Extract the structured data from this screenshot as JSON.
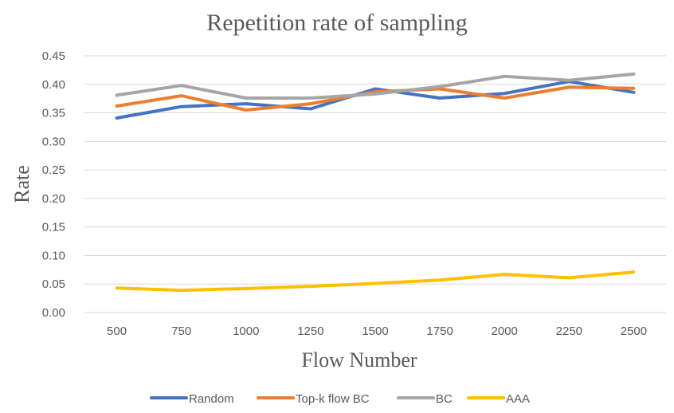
{
  "chart_data": {
    "type": "line",
    "title": "Repetition rate of sampling",
    "xlabel": "Flow Number",
    "ylabel": "Rate",
    "x": [
      500,
      750,
      1000,
      1250,
      1500,
      1750,
      2000,
      2250,
      2500
    ],
    "ylim": [
      0,
      0.45
    ],
    "yticks": [
      "0.00",
      "0.05",
      "0.10",
      "0.15",
      "0.20",
      "0.25",
      "0.30",
      "0.35",
      "0.40",
      "0.45"
    ],
    "grid": true,
    "legend_position": "bottom",
    "series": [
      {
        "name": "Random",
        "color": "#4472c4",
        "values": [
          0.341,
          0.361,
          0.366,
          0.357,
          0.392,
          0.376,
          0.384,
          0.405,
          0.386
        ]
      },
      {
        "name": "Top-k flow BC",
        "color": "#ed7d31",
        "values": [
          0.362,
          0.38,
          0.355,
          0.366,
          0.387,
          0.392,
          0.376,
          0.395,
          0.393
        ]
      },
      {
        "name": "BC",
        "color": "#a5a5a5",
        "values": [
          0.381,
          0.398,
          0.376,
          0.376,
          0.383,
          0.396,
          0.414,
          0.407,
          0.418
        ]
      },
      {
        "name": "AAA",
        "color": "#ffc000",
        "values": [
          0.043,
          0.039,
          0.042,
          0.046,
          0.051,
          0.057,
          0.067,
          0.061,
          0.071
        ]
      }
    ]
  }
}
